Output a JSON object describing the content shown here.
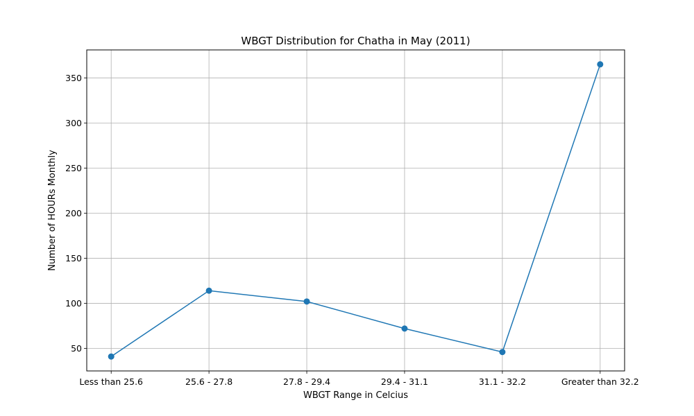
{
  "chart_data": {
    "type": "line",
    "title": "WBGT Distribution for Chatha in May (2011)",
    "xlabel": "WBGT Range in Celcius",
    "ylabel": "Number of HOURs Monthly",
    "categories": [
      "Less than 25.6",
      "25.6 - 27.8",
      "27.8 - 29.4",
      "29.4 - 31.1",
      "31.1 - 32.2",
      "Greater than 32.2"
    ],
    "series": [
      {
        "values": [
          41,
          114,
          102,
          72,
          46,
          365
        ],
        "color": "#1f77b4"
      }
    ],
    "yticks": [
      50,
      100,
      150,
      200,
      250,
      300,
      350
    ],
    "ylim": [
      25,
      381
    ],
    "grid": true,
    "marker": "circle"
  }
}
